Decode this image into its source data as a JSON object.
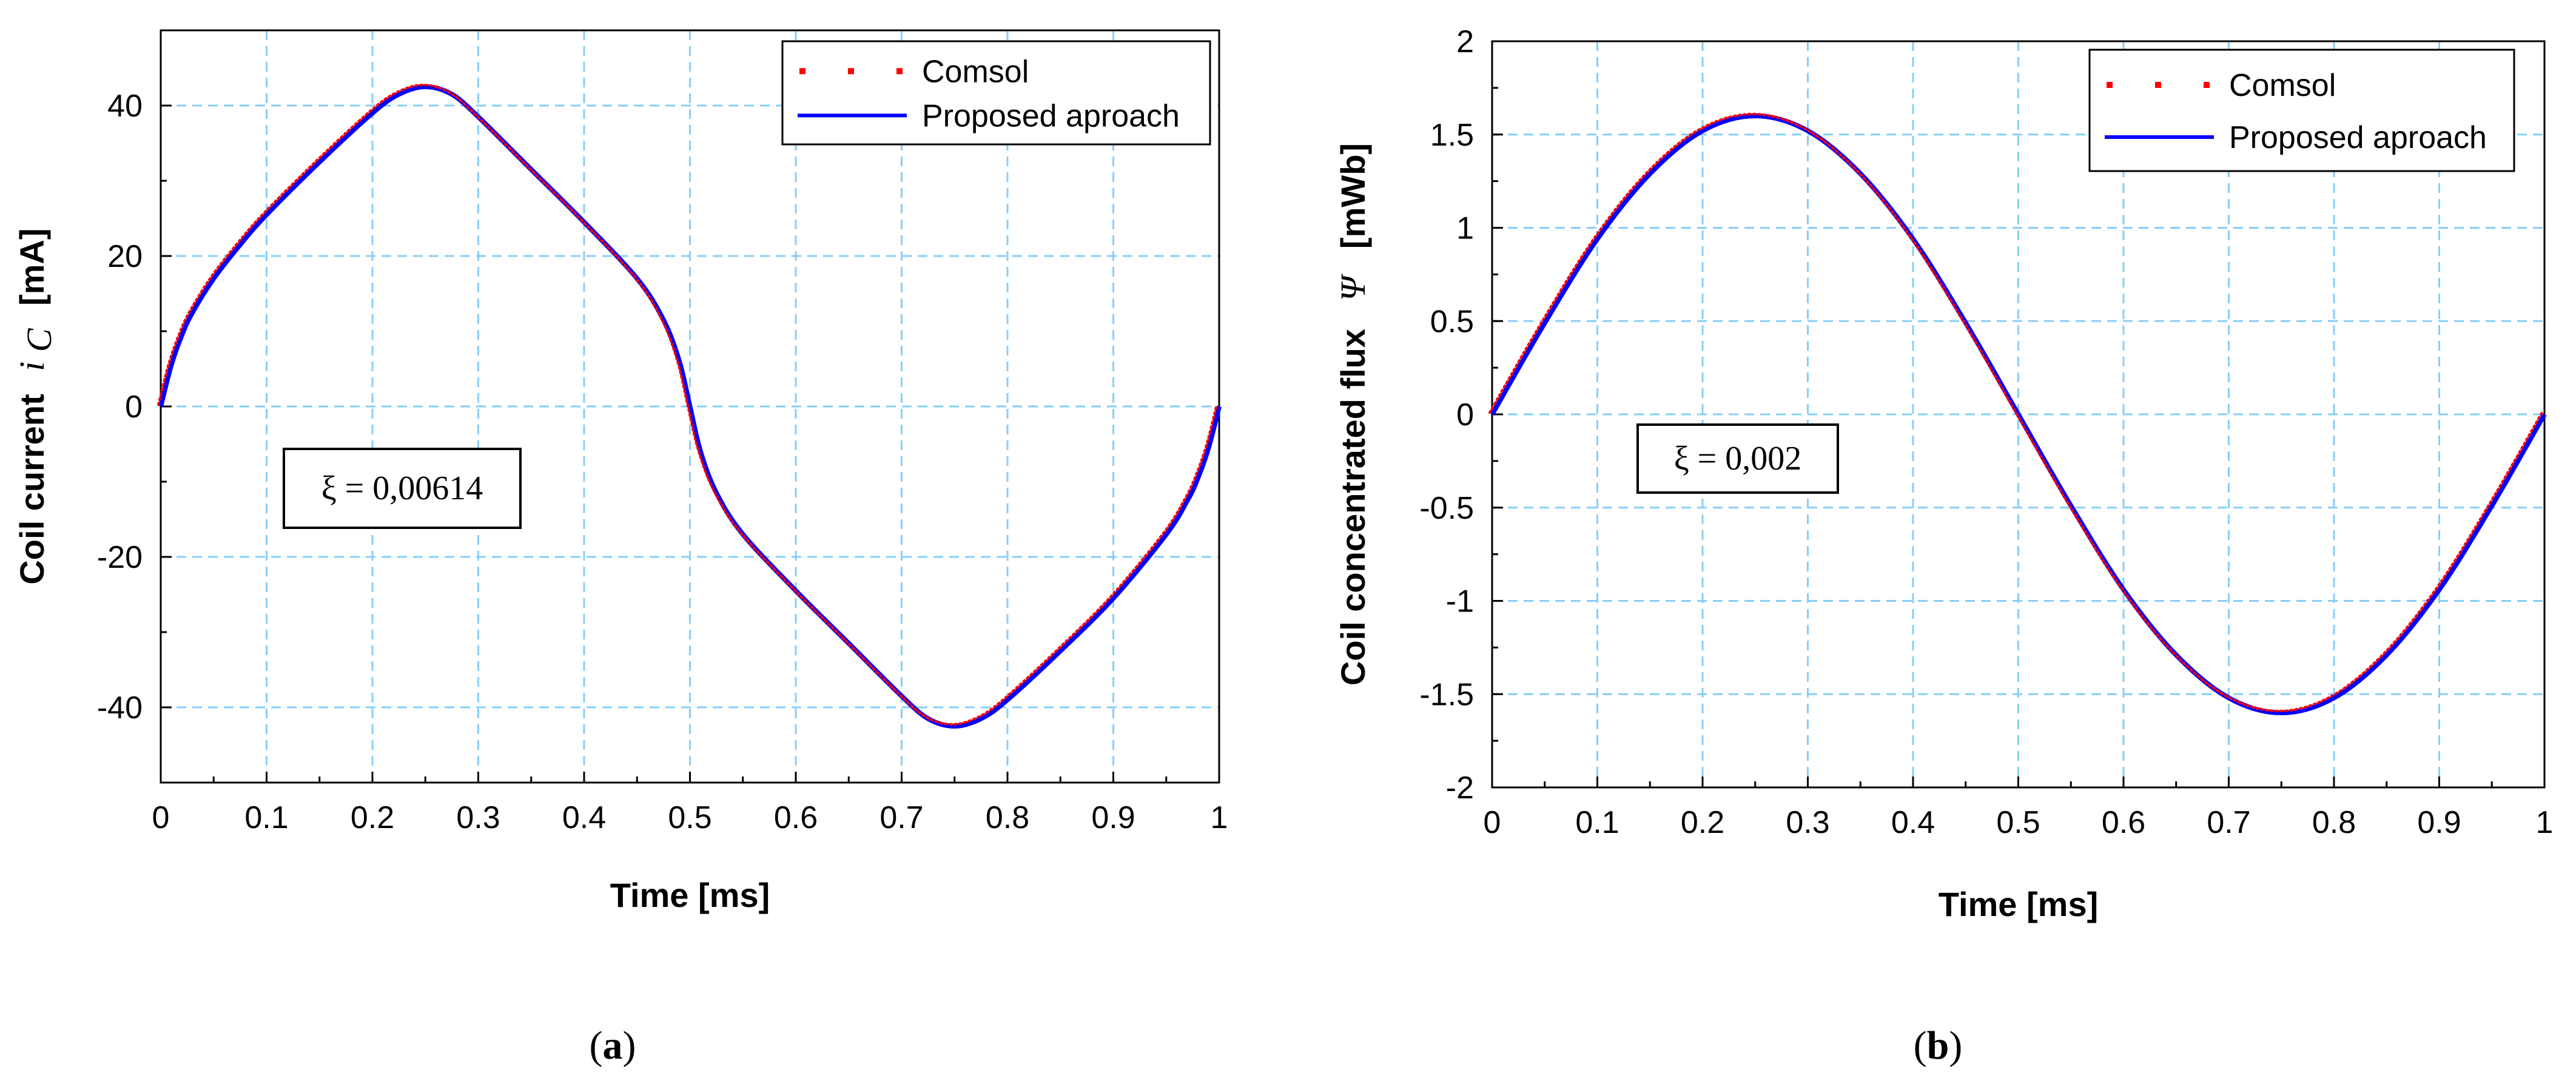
{
  "panels": [
    {
      "label_open": "(",
      "label_letter": "a",
      "label_close": ")",
      "annotation": "ξ = 0,00614",
      "legend": [
        "Comsol",
        "Proposed aproach"
      ],
      "ylabel_prefix": "Coil current",
      "ylabel_symbol": "i",
      "ylabel_symbol_sub": "C",
      "ylabel_unit": "[mA]",
      "xlabel": "Time [ms]"
    },
    {
      "label_open": "(",
      "label_letter": "b",
      "label_close": ")",
      "annotation": "ξ = 0,002",
      "legend": [
        "Comsol",
        "Proposed aproach"
      ],
      "ylabel_prefix": "Coil concentrated flux",
      "ylabel_symbol": "Ψ",
      "ylabel_unit": "[mWb]",
      "xlabel": "Time [ms]"
    }
  ],
  "colors": {
    "comsol": "#ff0000",
    "proposed": "#0000ff",
    "grid": "#87cefa",
    "axis": "#000000"
  },
  "chart_data": [
    {
      "type": "line",
      "title": "",
      "xlabel": "Time [ms]",
      "ylabel": "Coil current i_C [mA]",
      "xlim": [
        0,
        1
      ],
      "ylim": [
        -50,
        50
      ],
      "xticks": [
        0,
        0.1,
        0.2,
        0.3,
        0.4,
        0.5,
        0.6,
        0.7,
        0.8,
        0.9,
        1
      ],
      "xtick_labels": [
        "0",
        "0.1",
        "0.2",
        "0.3",
        "0.4",
        "0.5",
        "0.6",
        "0.7",
        "0.8",
        "0.9",
        "1"
      ],
      "yticks": [
        -40,
        -20,
        0,
        20,
        40
      ],
      "ytick_labels": [
        "-40",
        "-20",
        "0",
        "20",
        "40"
      ],
      "grid": true,
      "legend_position": "top-right",
      "x": [
        0,
        0.01,
        0.02,
        0.03,
        0.05,
        0.075,
        0.1,
        0.15,
        0.2,
        0.225,
        0.25,
        0.275,
        0.3,
        0.35,
        0.4,
        0.45,
        0.475,
        0.49,
        0.5,
        0.51,
        0.525,
        0.55,
        0.6,
        0.65,
        0.7,
        0.725,
        0.75,
        0.775,
        0.8,
        0.85,
        0.9,
        0.95,
        0.97,
        0.98,
        0.99,
        1
      ],
      "series": [
        {
          "name": "Comsol",
          "style": "dotted",
          "values": [
            0,
            5.5,
            9.5,
            12.5,
            17,
            21.5,
            25.5,
            32.5,
            39,
            41.5,
            42.5,
            41.5,
            38.5,
            31.5,
            24.5,
            17,
            11.5,
            6,
            0,
            -6,
            -11.5,
            -17,
            -24.5,
            -31.5,
            -38.5,
            -41.5,
            -42.5,
            -41.5,
            -39,
            -32.5,
            -25.5,
            -17,
            -12.5,
            -9.5,
            -5.5,
            0
          ]
        },
        {
          "name": "Proposed aproach",
          "style": "solid",
          "values": [
            0,
            5.5,
            9.5,
            12.5,
            17,
            21.5,
            25.5,
            32.5,
            39,
            41.5,
            42.5,
            41.5,
            38.5,
            31.5,
            24.5,
            17,
            11.5,
            6,
            0,
            -6,
            -11.5,
            -17,
            -24.5,
            -31.5,
            -38.5,
            -41.5,
            -42.5,
            -41.5,
            -39,
            -32.5,
            -25.5,
            -17,
            -12.5,
            -9.5,
            -5.5,
            0
          ]
        }
      ]
    },
    {
      "type": "line",
      "title": "",
      "xlabel": "Time [ms]",
      "ylabel": "Coil concentrated flux Ψ [mWb]",
      "xlim": [
        0,
        1
      ],
      "ylim": [
        -2,
        2
      ],
      "xticks": [
        0,
        0.1,
        0.2,
        0.3,
        0.4,
        0.5,
        0.6,
        0.7,
        0.8,
        0.9,
        1
      ],
      "xtick_labels": [
        "0",
        "0.1",
        "0.2",
        "0.3",
        "0.4",
        "0.5",
        "0.6",
        "0.7",
        "0.8",
        "0.9",
        "1"
      ],
      "yticks": [
        -2,
        -1.5,
        -1,
        -0.5,
        0,
        0.5,
        1,
        1.5,
        2
      ],
      "ytick_labels": [
        "-2",
        "-1.5",
        "-1",
        "-0.5",
        "0",
        "0.5",
        "1",
        "1.5",
        "2"
      ],
      "grid": true,
      "legend_position": "top-right",
      "x": [
        0,
        0.05,
        0.1,
        0.15,
        0.2,
        0.25,
        0.3,
        0.35,
        0.4,
        0.45,
        0.5,
        0.55,
        0.6,
        0.65,
        0.7,
        0.75,
        0.8,
        0.85,
        0.9,
        0.95,
        1
      ],
      "series": [
        {
          "name": "Comsol",
          "style": "dotted",
          "values": [
            0,
            0.49,
            0.94,
            1.29,
            1.52,
            1.6,
            1.52,
            1.29,
            0.94,
            0.49,
            0,
            -0.49,
            -0.94,
            -1.29,
            -1.52,
            -1.6,
            -1.52,
            -1.29,
            -0.94,
            -0.49,
            0
          ]
        },
        {
          "name": "Proposed aproach",
          "style": "solid",
          "values": [
            0,
            0.49,
            0.94,
            1.29,
            1.52,
            1.6,
            1.52,
            1.29,
            0.94,
            0.49,
            0,
            -0.49,
            -0.94,
            -1.29,
            -1.52,
            -1.6,
            -1.52,
            -1.29,
            -0.94,
            -0.49,
            0
          ]
        }
      ]
    }
  ]
}
